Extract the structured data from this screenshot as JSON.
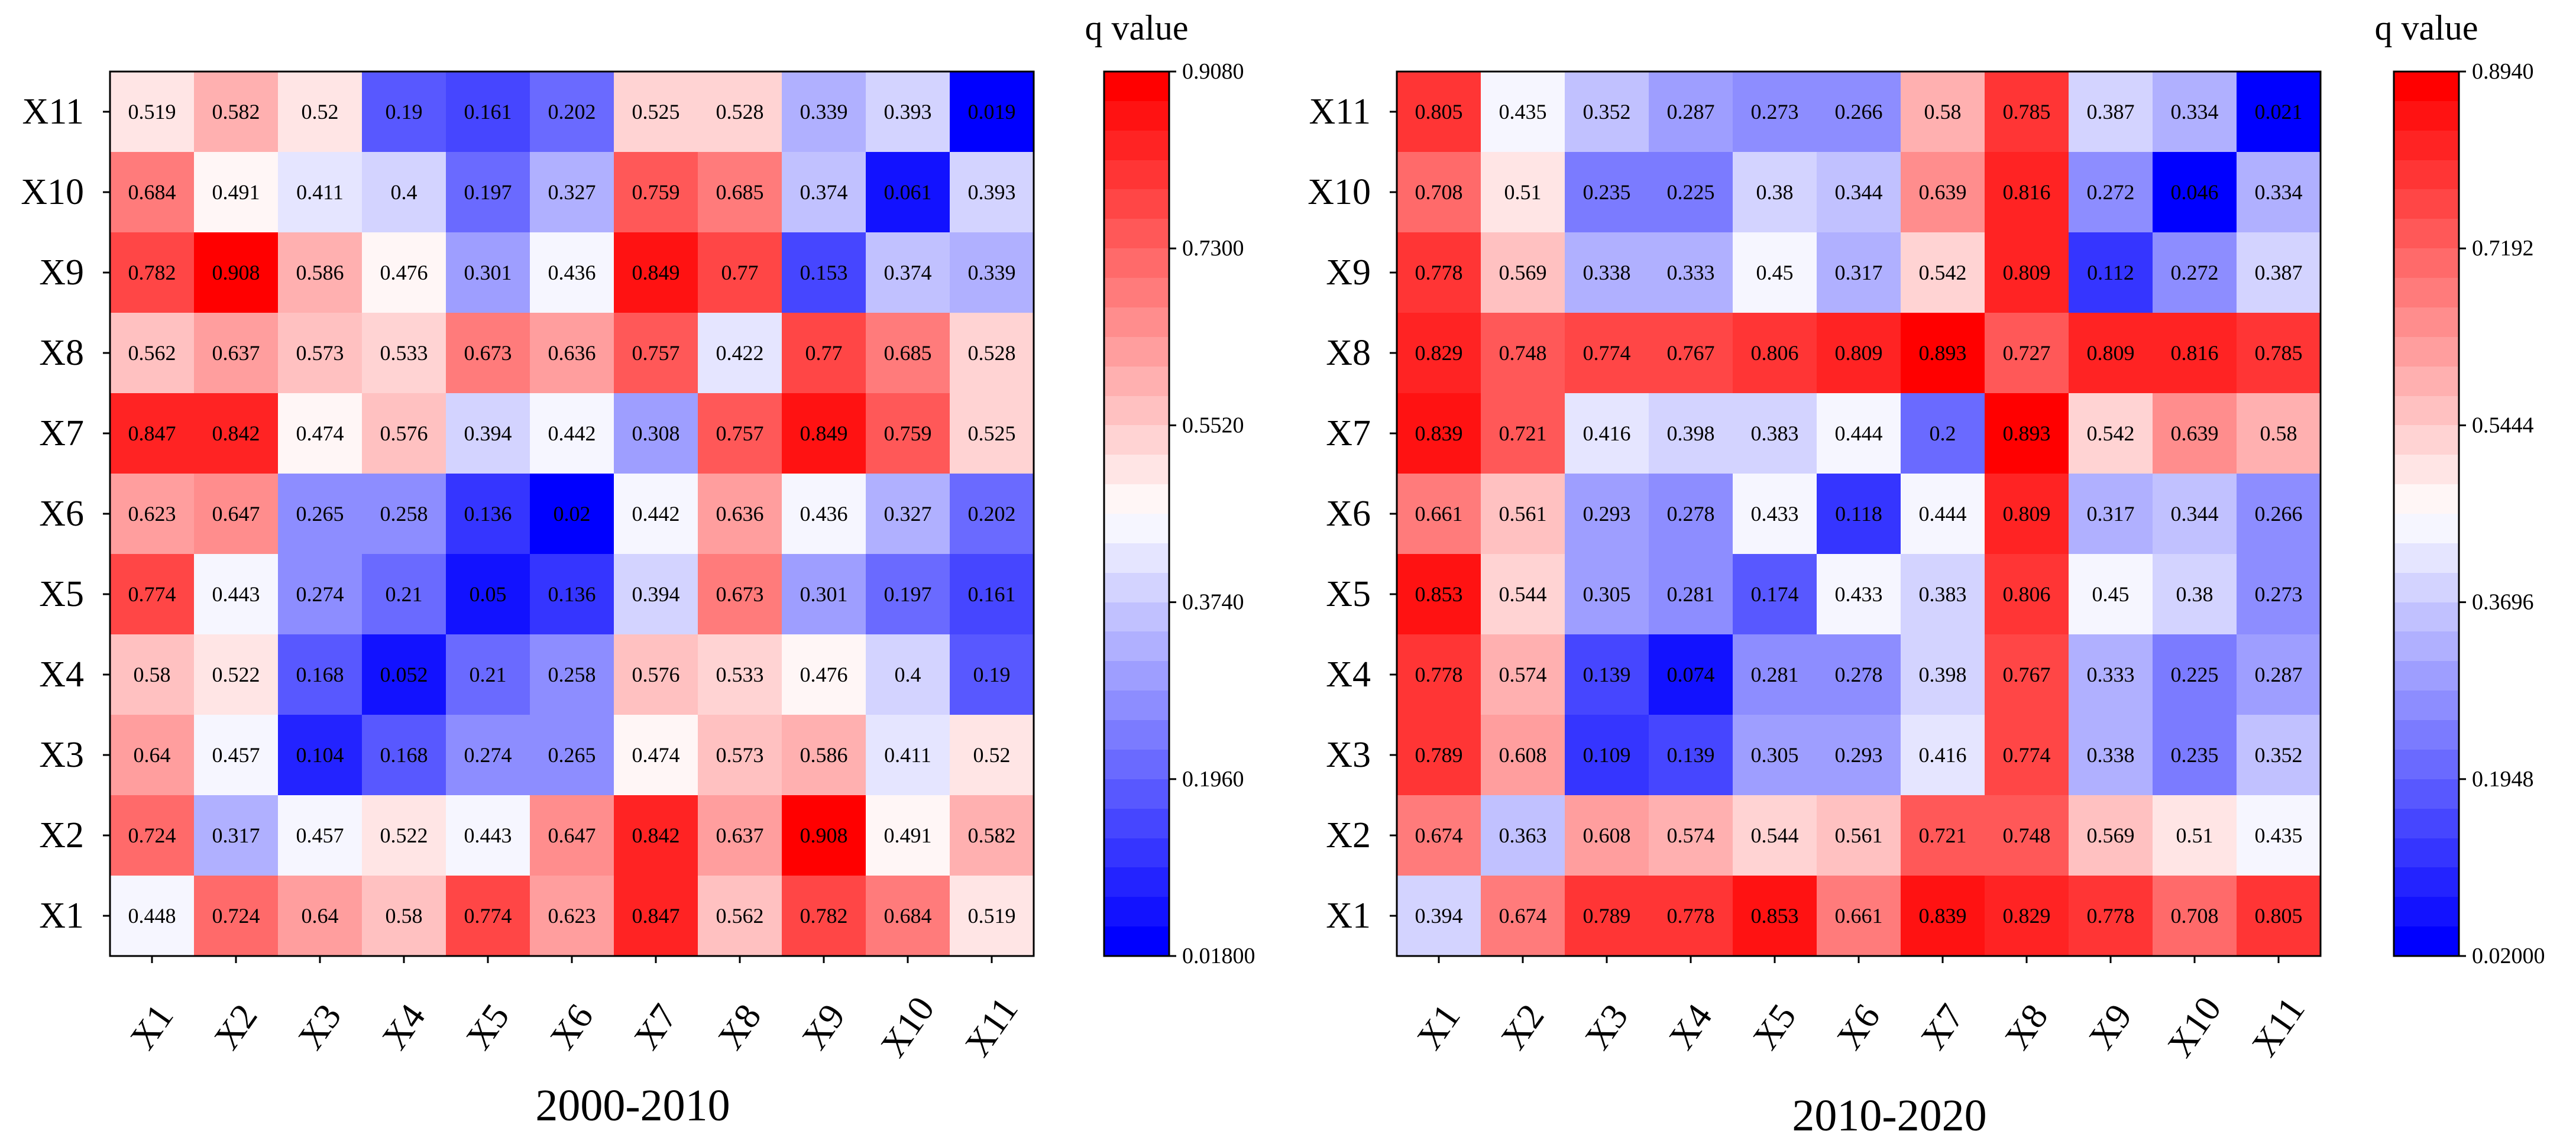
{
  "chart_data": [
    {
      "type": "heatmap",
      "title": "2000-2010",
      "x_labels": [
        "X1",
        "X2",
        "X3",
        "X4",
        "X5",
        "X6",
        "X7",
        "X8",
        "X9",
        "X10",
        "X11"
      ],
      "y_labels": [
        "X11",
        "X10",
        "X9",
        "X8",
        "X7",
        "X6",
        "X5",
        "X4",
        "X3",
        "X2",
        "X1"
      ],
      "values": [
        [
          0.519,
          0.582,
          0.52,
          0.19,
          0.161,
          0.202,
          0.525,
          0.528,
          0.339,
          0.393,
          0.019
        ],
        [
          0.684,
          0.491,
          0.411,
          0.4,
          0.197,
          0.327,
          0.759,
          0.685,
          0.374,
          0.061,
          0.393
        ],
        [
          0.782,
          0.908,
          0.586,
          0.476,
          0.301,
          0.436,
          0.849,
          0.77,
          0.153,
          0.374,
          0.339
        ],
        [
          0.562,
          0.637,
          0.573,
          0.533,
          0.673,
          0.636,
          0.757,
          0.422,
          0.77,
          0.685,
          0.528
        ],
        [
          0.847,
          0.842,
          0.474,
          0.576,
          0.394,
          0.442,
          0.308,
          0.757,
          0.849,
          0.759,
          0.525
        ],
        [
          0.623,
          0.647,
          0.265,
          0.258,
          0.136,
          0.02,
          0.442,
          0.636,
          0.436,
          0.327,
          0.202
        ],
        [
          0.774,
          0.443,
          0.274,
          0.21,
          0.05,
          0.136,
          0.394,
          0.673,
          0.301,
          0.197,
          0.161
        ],
        [
          0.58,
          0.522,
          0.168,
          0.052,
          0.21,
          0.258,
          0.576,
          0.533,
          0.476,
          0.4,
          0.19
        ],
        [
          0.64,
          0.457,
          0.104,
          0.168,
          0.274,
          0.265,
          0.474,
          0.573,
          0.586,
          0.411,
          0.52
        ],
        [
          0.724,
          0.317,
          0.457,
          0.522,
          0.443,
          0.647,
          0.842,
          0.637,
          0.908,
          0.491,
          0.582
        ],
        [
          0.448,
          0.724,
          0.64,
          0.58,
          0.774,
          0.623,
          0.847,
          0.562,
          0.782,
          0.684,
          0.519
        ]
      ],
      "colorbar": {
        "title": "q value",
        "min": 0.018,
        "max": 0.908,
        "levels": 30,
        "tick_labels": [
          "0.9080",
          "0.7300",
          "0.5520",
          "0.3740",
          "0.1960",
          "0.01800"
        ]
      },
      "colormap": {
        "low": "#0000ff",
        "mid": "#ffffff",
        "high": "#ff0000"
      }
    },
    {
      "type": "heatmap",
      "title": "2010-2020",
      "x_labels": [
        "X1",
        "X2",
        "X3",
        "X4",
        "X5",
        "X6",
        "X7",
        "X8",
        "X9",
        "X10",
        "X11"
      ],
      "y_labels": [
        "X11",
        "X10",
        "X9",
        "X8",
        "X7",
        "X6",
        "X5",
        "X4",
        "X3",
        "X2",
        "X1"
      ],
      "values": [
        [
          0.805,
          0.435,
          0.352,
          0.287,
          0.273,
          0.266,
          0.58,
          0.785,
          0.387,
          0.334,
          0.021
        ],
        [
          0.708,
          0.51,
          0.235,
          0.225,
          0.38,
          0.344,
          0.639,
          0.816,
          0.272,
          0.046,
          0.334
        ],
        [
          0.778,
          0.569,
          0.338,
          0.333,
          0.45,
          0.317,
          0.542,
          0.809,
          0.112,
          0.272,
          0.387
        ],
        [
          0.829,
          0.748,
          0.774,
          0.767,
          0.806,
          0.809,
          0.893,
          0.727,
          0.809,
          0.816,
          0.785
        ],
        [
          0.839,
          0.721,
          0.416,
          0.398,
          0.383,
          0.444,
          0.2,
          0.893,
          0.542,
          0.639,
          0.58
        ],
        [
          0.661,
          0.561,
          0.293,
          0.278,
          0.433,
          0.118,
          0.444,
          0.809,
          0.317,
          0.344,
          0.266
        ],
        [
          0.853,
          0.544,
          0.305,
          0.281,
          0.174,
          0.433,
          0.383,
          0.806,
          0.45,
          0.38,
          0.273
        ],
        [
          0.778,
          0.574,
          0.139,
          0.074,
          0.281,
          0.278,
          0.398,
          0.767,
          0.333,
          0.225,
          0.287
        ],
        [
          0.789,
          0.608,
          0.109,
          0.139,
          0.305,
          0.293,
          0.416,
          0.774,
          0.338,
          0.235,
          0.352
        ],
        [
          0.674,
          0.363,
          0.608,
          0.574,
          0.544,
          0.561,
          0.721,
          0.748,
          0.569,
          0.51,
          0.435
        ],
        [
          0.394,
          0.674,
          0.789,
          0.778,
          0.853,
          0.661,
          0.839,
          0.829,
          0.778,
          0.708,
          0.805
        ]
      ],
      "colorbar": {
        "title": "q value",
        "min": 0.02,
        "max": 0.894,
        "levels": 30,
        "tick_labels": [
          "0.8940",
          "0.7192",
          "0.5444",
          "0.3696",
          "0.1948",
          "0.02000"
        ]
      },
      "colormap": {
        "low": "#0000ff",
        "mid": "#ffffff",
        "high": "#ff0000"
      }
    }
  ]
}
